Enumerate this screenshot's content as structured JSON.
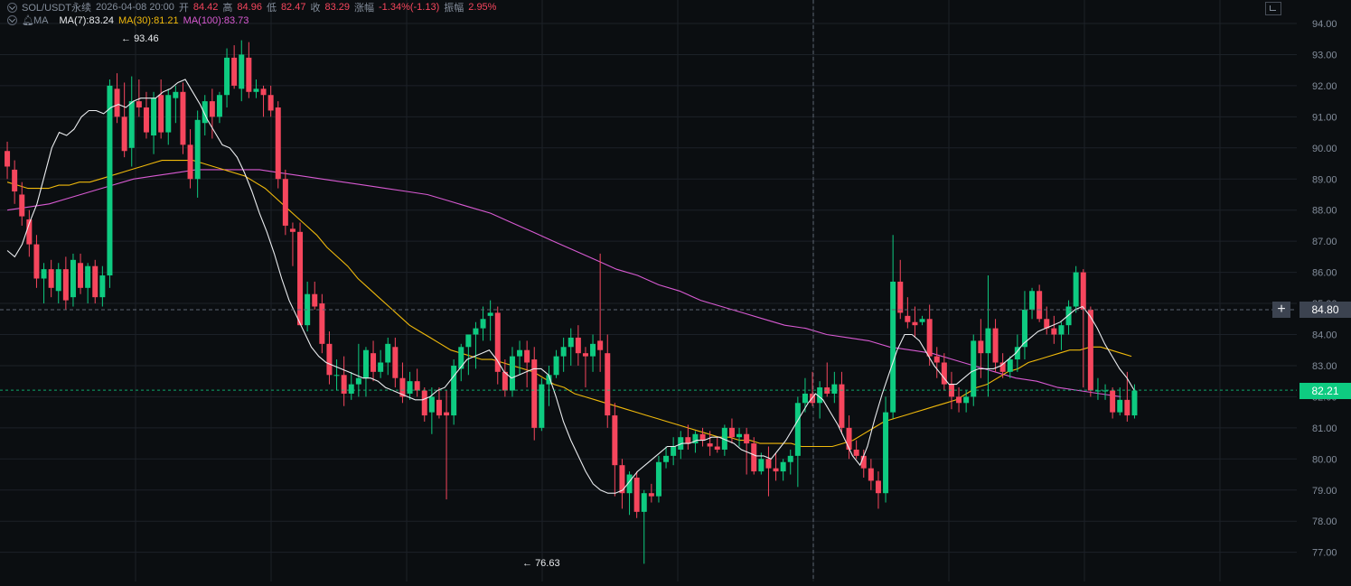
{
  "header": {
    "symbol": "SOL/USDT永续",
    "datetime": "2026-04-08 20:00",
    "open_label": "开",
    "open": "84.42",
    "high_label": "高",
    "high": "84.96",
    "low_label": "低",
    "low": "82.47",
    "close_label": "收",
    "close": "83.29",
    "change_label": "涨幅",
    "change": "-1.34%(-1.13)",
    "amplitude_label": "振幅",
    "amplitude": "2.95%"
  },
  "indicator": {
    "name": "MA",
    "ma7": "MA(7):83.24",
    "ma30": "MA(30):81.21",
    "ma100": "MA(100):83.73"
  },
  "crosshair_price": "84.80",
  "last_price": "82.21",
  "high_marker": "93.46",
  "low_marker": "76.63",
  "colors": {
    "background": "#0b0e11",
    "up": "#0ecb81",
    "down": "#f6465d",
    "ma7": "#eaecef",
    "ma30": "#f0b90b",
    "ma100": "#d85ad2",
    "grid": "#1c2128"
  },
  "chart_data": {
    "type": "candlestick",
    "y_axis": {
      "ticks": [
        "94.00",
        "93.00",
        "92.00",
        "91.00",
        "90.00",
        "89.00",
        "88.00",
        "87.00",
        "86.00",
        "85.00",
        "84.00",
        "83.00",
        "82.00",
        "81.00",
        "80.00",
        "79.00",
        "78.00",
        "77.00"
      ],
      "range": [
        76.0,
        94.6
      ]
    },
    "candles": [
      [
        89.9,
        90.2,
        89.0,
        89.4
      ],
      [
        89.3,
        89.6,
        88.2,
        88.6
      ],
      [
        88.5,
        88.9,
        87.5,
        87.8
      ],
      [
        87.7,
        88.0,
        86.5,
        86.9
      ],
      [
        86.9,
        87.2,
        85.5,
        85.8
      ],
      [
        85.8,
        86.3,
        85.0,
        86.1
      ],
      [
        86.1,
        86.4,
        85.2,
        85.5
      ],
      [
        85.4,
        86.3,
        85.0,
        86.1
      ],
      [
        86.1,
        86.5,
        84.8,
        85.1
      ],
      [
        85.2,
        86.6,
        84.9,
        86.4
      ],
      [
        86.3,
        86.6,
        85.3,
        85.5
      ],
      [
        85.5,
        86.3,
        85.0,
        86.2
      ],
      [
        86.2,
        86.4,
        85.0,
        85.2
      ],
      [
        85.2,
        86.2,
        84.9,
        85.9
      ],
      [
        85.9,
        92.2,
        85.5,
        92.0
      ],
      [
        91.9,
        92.4,
        90.8,
        91.0
      ],
      [
        91.0,
        92.1,
        89.7,
        89.9
      ],
      [
        90.0,
        92.3,
        89.4,
        91.5
      ],
      [
        91.5,
        92.2,
        91.0,
        91.3
      ],
      [
        91.3,
        91.8,
        90.3,
        90.5
      ],
      [
        90.4,
        91.8,
        89.8,
        91.6
      ],
      [
        91.7,
        92.2,
        90.3,
        90.5
      ],
      [
        90.5,
        91.9,
        90.1,
        91.7
      ],
      [
        91.6,
        92.0,
        90.8,
        91.8
      ],
      [
        91.8,
        92.1,
        89.8,
        90.1
      ],
      [
        90.1,
        90.6,
        88.7,
        89.0
      ],
      [
        89.0,
        91.2,
        88.4,
        90.9
      ],
      [
        90.8,
        91.7,
        90.4,
        91.5
      ],
      [
        91.5,
        91.9,
        90.3,
        91.0
      ],
      [
        91.0,
        91.8,
        90.8,
        91.7
      ],
      [
        91.7,
        93.2,
        91.3,
        92.9
      ],
      [
        92.9,
        93.3,
        91.9,
        92.0
      ],
      [
        91.9,
        93.46,
        91.5,
        93.0
      ],
      [
        92.9,
        93.4,
        91.6,
        91.8
      ],
      [
        91.8,
        92.2,
        91.6,
        91.9
      ],
      [
        91.9,
        92.0,
        91.0,
        91.7
      ],
      [
        91.7,
        92.0,
        91.0,
        91.2
      ],
      [
        91.3,
        91.5,
        88.7,
        89.0
      ],
      [
        89.0,
        89.3,
        87.2,
        87.5
      ],
      [
        87.4,
        87.6,
        86.2,
        87.3
      ],
      [
        87.3,
        87.6,
        84.3,
        84.3
      ],
      [
        84.3,
        85.7,
        84.1,
        85.3
      ],
      [
        85.3,
        85.7,
        84.8,
        84.9
      ],
      [
        85.0,
        85.3,
        83.4,
        83.7
      ],
      [
        83.7,
        84.1,
        82.4,
        82.7
      ],
      [
        82.7,
        83.2,
        82.2,
        82.7
      ],
      [
        82.7,
        83.3,
        81.7,
        82.1
      ],
      [
        82.1,
        82.8,
        81.9,
        82.4
      ],
      [
        82.4,
        83.7,
        82.0,
        82.6
      ],
      [
        82.6,
        83.6,
        82.0,
        83.5
      ],
      [
        83.4,
        83.8,
        82.5,
        82.8
      ],
      [
        82.8,
        83.5,
        82.6,
        83.1
      ],
      [
        83.1,
        83.9,
        82.7,
        83.7
      ],
      [
        83.6,
        83.9,
        82.3,
        82.6
      ],
      [
        82.6,
        83.1,
        81.8,
        82.0
      ],
      [
        82.1,
        82.8,
        81.9,
        82.5
      ],
      [
        82.5,
        82.9,
        82.0,
        82.2
      ],
      [
        82.2,
        82.3,
        81.2,
        81.4
      ],
      [
        81.5,
        82.3,
        80.8,
        82.0
      ],
      [
        81.9,
        82.3,
        81.3,
        81.4
      ],
      [
        81.5,
        82.2,
        78.7,
        81.4
      ],
      [
        81.4,
        83.2,
        81.1,
        83.0
      ],
      [
        82.9,
        83.7,
        82.5,
        83.6
      ],
      [
        83.6,
        84.0,
        82.7,
        84.0
      ],
      [
        84.0,
        84.4,
        82.9,
        84.2
      ],
      [
        84.2,
        84.9,
        83.8,
        84.5
      ],
      [
        84.6,
        85.1,
        83.8,
        84.7
      ],
      [
        84.7,
        84.9,
        82.4,
        82.8
      ],
      [
        82.8,
        83.2,
        82.0,
        82.2
      ],
      [
        82.2,
        83.6,
        82.0,
        83.3
      ],
      [
        83.3,
        83.8,
        82.7,
        83.5
      ],
      [
        83.5,
        83.8,
        82.3,
        83.1
      ],
      [
        83.2,
        83.6,
        80.6,
        81.0
      ],
      [
        81.0,
        82.6,
        80.9,
        82.4
      ],
      [
        82.4,
        83.0,
        81.7,
        82.7
      ],
      [
        82.7,
        83.5,
        82.6,
        83.3
      ],
      [
        83.3,
        83.9,
        82.8,
        83.6
      ],
      [
        83.6,
        84.2,
        83.0,
        83.9
      ],
      [
        83.9,
        84.3,
        83.0,
        83.4
      ],
      [
        83.4,
        83.6,
        82.3,
        83.3
      ],
      [
        83.3,
        84.0,
        82.8,
        83.7
      ],
      [
        83.8,
        86.6,
        82.8,
        83.5
      ],
      [
        83.4,
        84.0,
        81.0,
        81.4
      ],
      [
        81.4,
        81.8,
        78.8,
        79.8
      ],
      [
        79.8,
        80.0,
        78.4,
        78.9
      ],
      [
        78.9,
        79.6,
        78.2,
        79.5
      ],
      [
        79.4,
        79.6,
        78.1,
        78.3
      ],
      [
        78.3,
        79.0,
        76.63,
        78.9
      ],
      [
        78.9,
        79.2,
        78.6,
        78.8
      ],
      [
        78.8,
        80.1,
        78.6,
        79.9
      ],
      [
        79.9,
        80.4,
        79.7,
        80.1
      ],
      [
        80.1,
        80.7,
        79.8,
        80.4
      ],
      [
        80.3,
        80.9,
        80.0,
        80.7
      ],
      [
        80.7,
        81.1,
        80.3,
        80.5
      ],
      [
        80.5,
        80.9,
        80.2,
        80.8
      ],
      [
        80.8,
        81.0,
        80.4,
        80.6
      ],
      [
        80.5,
        80.9,
        80.1,
        80.4
      ],
      [
        80.4,
        80.7,
        80.2,
        80.3
      ],
      [
        80.3,
        81.1,
        80.1,
        81.0
      ],
      [
        81.0,
        81.3,
        80.5,
        80.7
      ],
      [
        80.7,
        81.0,
        80.4,
        80.8
      ],
      [
        80.8,
        81.0,
        79.5,
        80.5
      ],
      [
        80.5,
        80.7,
        79.5,
        79.6
      ],
      [
        79.6,
        80.2,
        79.5,
        80.0
      ],
      [
        80.0,
        80.4,
        78.8,
        79.7
      ],
      [
        79.7,
        80.2,
        79.3,
        79.6
      ],
      [
        79.6,
        80.0,
        79.3,
        79.9
      ],
      [
        79.9,
        80.3,
        79.5,
        80.1
      ],
      [
        80.1,
        82.0,
        79.1,
        81.8
      ],
      [
        81.8,
        82.6,
        81.5,
        82.1
      ],
      [
        82.1,
        82.8,
        81.7,
        81.8
      ],
      [
        81.8,
        82.5,
        81.3,
        82.3
      ],
      [
        82.3,
        83.1,
        82.0,
        82.1
      ],
      [
        82.1,
        82.8,
        81.8,
        82.4
      ],
      [
        82.4,
        82.8,
        80.8,
        81.0
      ],
      [
        81.0,
        81.4,
        80.0,
        80.3
      ],
      [
        80.3,
        80.6,
        80.0,
        80.1
      ],
      [
        80.1,
        80.3,
        79.4,
        79.7
      ],
      [
        79.7,
        80.0,
        79.0,
        79.3
      ],
      [
        79.3,
        79.6,
        78.4,
        78.9
      ],
      [
        78.9,
        82.0,
        78.6,
        81.5
      ],
      [
        81.5,
        87.2,
        81.3,
        85.7
      ],
      [
        85.7,
        86.4,
        84.5,
        84.7
      ],
      [
        84.6,
        85.2,
        84.2,
        84.4
      ],
      [
        84.4,
        84.9,
        83.9,
        84.3
      ],
      [
        84.4,
        84.6,
        84.3,
        84.5
      ],
      [
        84.5,
        84.96,
        83.0,
        83.3
      ],
      [
        83.3,
        83.6,
        82.6,
        83.1
      ],
      [
        83.1,
        83.4,
        82.2,
        82.4
      ],
      [
        82.4,
        82.8,
        81.6,
        82.0
      ],
      [
        82.0,
        82.3,
        81.5,
        81.8
      ],
      [
        81.8,
        82.2,
        81.5,
        82.0
      ],
      [
        82.0,
        84.0,
        81.7,
        83.8
      ],
      [
        83.8,
        84.5,
        82.6,
        83.4
      ],
      [
        83.4,
        85.9,
        82.0,
        84.2
      ],
      [
        84.2,
        84.5,
        82.8,
        83.1
      ],
      [
        83.1,
        83.4,
        82.6,
        82.8
      ],
      [
        82.8,
        83.3,
        82.6,
        83.2
      ],
      [
        83.2,
        84.0,
        82.8,
        83.6
      ],
      [
        83.6,
        85.4,
        83.2,
        84.8
      ],
      [
        84.8,
        85.5,
        84.5,
        85.4
      ],
      [
        85.4,
        85.6,
        84.4,
        84.5
      ],
      [
        84.5,
        84.9,
        84.0,
        84.2
      ],
      [
        84.2,
        84.6,
        83.7,
        84.0
      ],
      [
        84.0,
        84.4,
        83.5,
        84.3
      ],
      [
        84.3,
        85.1,
        84.0,
        84.9
      ],
      [
        84.9,
        86.2,
        84.7,
        86.0
      ],
      [
        86.0,
        86.1,
        82.3,
        84.8
      ],
      [
        84.8,
        84.9,
        82.0,
        82.2
      ],
      [
        82.2,
        82.6,
        81.9,
        82.2
      ],
      [
        82.2,
        82.4,
        81.9,
        82.2
      ],
      [
        82.2,
        82.3,
        81.3,
        81.5
      ],
      [
        81.5,
        82.3,
        81.4,
        81.9
      ],
      [
        81.9,
        82.8,
        81.2,
        81.4
      ],
      [
        81.4,
        82.4,
        81.3,
        82.2
      ]
    ],
    "ma7": [
      86.7,
      86.5,
      86.9,
      87.6,
      88.2,
      89.1,
      90.0,
      90.5,
      90.4,
      90.6,
      91.0,
      91.2,
      91.2,
      91.1,
      91.3,
      91.4,
      91.3,
      91.5,
      91.6,
      91.6,
      91.6,
      91.8,
      91.9,
      92.1,
      92.2,
      91.8,
      91.4,
      90.9,
      90.5,
      90.1,
      90.0,
      89.7,
      89.2,
      88.6,
      87.9,
      87.3,
      86.6,
      85.8,
      85.1,
      84.6,
      84.1,
      83.6,
      83.3,
      83.1,
      83.0,
      82.9,
      82.8,
      82.7,
      82.6,
      82.6,
      82.5,
      82.3,
      82.2,
      82.1,
      82.0,
      81.9,
      81.9,
      82.0,
      82.2,
      82.3,
      82.6,
      82.9,
      83.2,
      83.3,
      83.4,
      83.5,
      83.2,
      82.8,
      82.6,
      82.7,
      82.8,
      82.9,
      82.9,
      82.7,
      82.0,
      81.2,
      80.6,
      80.1,
      79.6,
      79.2,
      79.0,
      78.9,
      78.9,
      79.0,
      79.3,
      79.6,
      79.8,
      80.0,
      80.2,
      80.4,
      80.4,
      80.5,
      80.5,
      80.6,
      80.6,
      80.7,
      80.7,
      80.6,
      80.5,
      80.3,
      80.2,
      80.1,
      80.1,
      80.0,
      80.3,
      80.6,
      81.0,
      81.4,
      81.8,
      82.1,
      81.9,
      81.5,
      81.1,
      80.6,
      80.1,
      79.8,
      80.4,
      81.3,
      82.1,
      82.8,
      83.5,
      84.0,
      84.0,
      83.8,
      83.4,
      83.0,
      82.7,
      82.4,
      82.4,
      82.6,
      82.8,
      82.9,
      82.9,
      82.9,
      83.0,
      83.2,
      83.4,
      83.7,
      83.9,
      84.1,
      84.2,
      84.3,
      84.4,
      84.6,
      84.8,
      84.9,
      84.6,
      84.2,
      83.7,
      83.3,
      82.9,
      82.6,
      82.2
    ],
    "ma30": [
      88.9,
      88.8,
      88.7,
      88.7,
      88.7,
      88.8,
      88.8,
      88.9,
      88.9,
      89.0,
      89.1,
      89.2,
      89.3,
      89.4,
      89.5,
      89.6,
      89.6,
      89.6,
      89.6,
      89.5,
      89.4,
      89.3,
      89.2,
      89.1,
      88.9,
      88.7,
      88.4,
      88.1,
      87.8,
      87.5,
      87.2,
      86.8,
      86.5,
      86.2,
      85.8,
      85.5,
      85.2,
      84.9,
      84.6,
      84.3,
      84.1,
      83.9,
      83.7,
      83.5,
      83.4,
      83.3,
      83.2,
      83.2,
      83.1,
      83.0,
      82.9,
      82.8,
      82.6,
      82.4,
      82.3,
      82.1,
      82.0,
      81.9,
      81.8,
      81.7,
      81.6,
      81.5,
      81.4,
      81.3,
      81.2,
      81.1,
      81.0,
      80.9,
      80.8,
      80.7,
      80.7,
      80.6,
      80.6,
      80.5,
      80.5,
      80.5,
      80.5,
      80.4,
      80.4,
      80.4,
      80.4,
      80.5,
      80.6,
      80.8,
      81.0,
      81.2,
      81.3,
      81.4,
      81.5,
      81.6,
      81.7,
      81.8,
      81.9,
      82.1,
      82.3,
      82.4,
      82.6,
      82.8,
      82.9,
      83.1,
      83.2,
      83.3,
      83.4,
      83.5,
      83.5,
      83.6,
      83.6,
      83.5,
      83.4,
      83.3
    ],
    "ma100": [
      88.0,
      88.1,
      88.2,
      88.4,
      88.6,
      88.8,
      89.0,
      89.1,
      89.2,
      89.3,
      89.3,
      89.3,
      89.3,
      89.2,
      89.1,
      89.0,
      88.9,
      88.8,
      88.7,
      88.6,
      88.5,
      88.3,
      88.1,
      87.9,
      87.6,
      87.3,
      87.0,
      86.7,
      86.4,
      86.1,
      85.9,
      85.6,
      85.4,
      85.1,
      84.9,
      84.7,
      84.5,
      84.3,
      84.2,
      84.0,
      83.9,
      83.8,
      83.6,
      83.5,
      83.4,
      83.2,
      83.0,
      82.8,
      82.6,
      82.5,
      82.3,
      82.2,
      82.1,
      82.0
    ]
  }
}
